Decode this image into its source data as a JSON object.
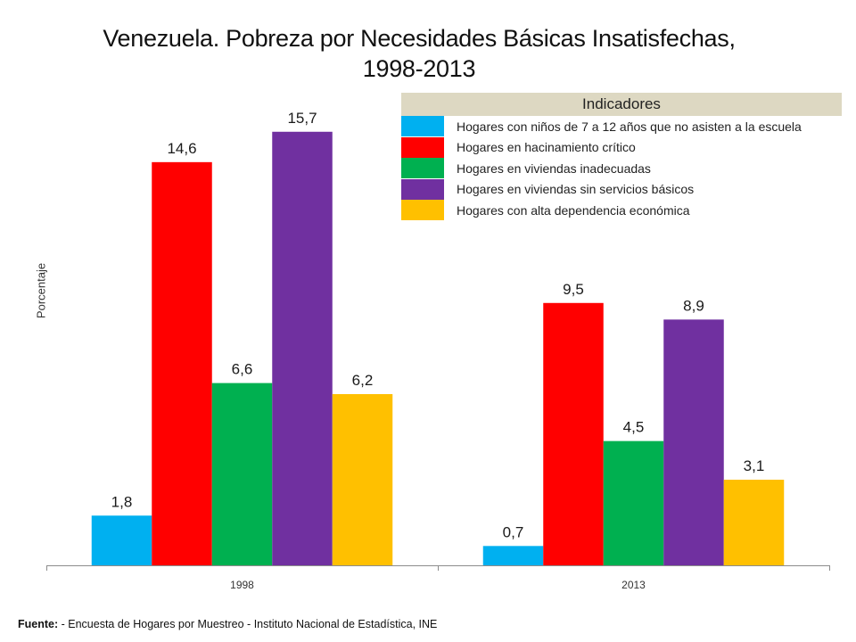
{
  "chart_data": {
    "type": "bar",
    "title_line1": "Venezuela. Pobreza por Necesidades Básicas Insatisfechas,",
    "title_line2": "1998-2013",
    "ylabel": "Porcentaje",
    "xlabel": "",
    "categories": [
      "1998",
      "2013"
    ],
    "series": [
      {
        "name": "Hogares con niños de 7 a 12 años que no asisten a la escuela",
        "color": "#00b0f0",
        "values": [
          1.8,
          0.7
        ],
        "labels": [
          "1,8",
          "0,7"
        ]
      },
      {
        "name": "Hogares en hacinamiento crítico",
        "color": "#ff0000",
        "values": [
          14.6,
          9.5
        ],
        "labels": [
          "14,6",
          "9,5"
        ]
      },
      {
        "name": "Hogares en viviendas inadecuadas",
        "color": "#00b050",
        "values": [
          6.6,
          4.5
        ],
        "labels": [
          "6,6",
          "4,5"
        ]
      },
      {
        "name": "Hogares en viviendas sin servicios básicos",
        "color": "#7030a0",
        "values": [
          15.7,
          8.9
        ],
        "labels": [
          "15,7",
          "8,9"
        ]
      },
      {
        "name": "Hogares con alta dependencia económica",
        "color": "#ffc000",
        "values": [
          6.2,
          3.1
        ],
        "labels": [
          "6,2",
          "3,1"
        ]
      }
    ],
    "legend_title": "Indicadores",
    "legend_position": "top-right",
    "ylim": [
      0,
      18.8
    ],
    "grid": false
  },
  "footer": {
    "source_label": "Fuente:",
    "source_text": " - Encuesta de Hogares por Muestreo  - Instituto Nacional de Estadística, INE"
  }
}
